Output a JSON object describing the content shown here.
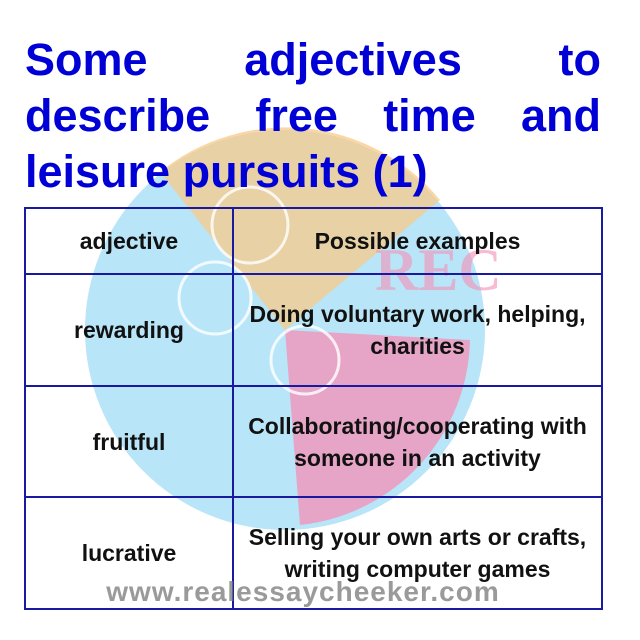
{
  "title": "Some adjectives to describe free time and leisure pursuits (1)",
  "table": {
    "headers": [
      "adjective",
      "Possible examples"
    ],
    "rows": [
      {
        "adjective": "rewarding",
        "example": "Doing voluntary work, helping, charities"
      },
      {
        "adjective": "fruitful",
        "example": "Collaborating/cooperating with someone in an activity"
      },
      {
        "adjective": "lucrative",
        "example": "Selling your own arts or crafts, writing computer games"
      }
    ]
  },
  "watermark": {
    "site": "www.realessaycheeker.com",
    "logo_text": "REC",
    "colors": {
      "orange": "#f8c98a",
      "blue": "#7fd0f2",
      "pink": "#f58fb6"
    }
  }
}
